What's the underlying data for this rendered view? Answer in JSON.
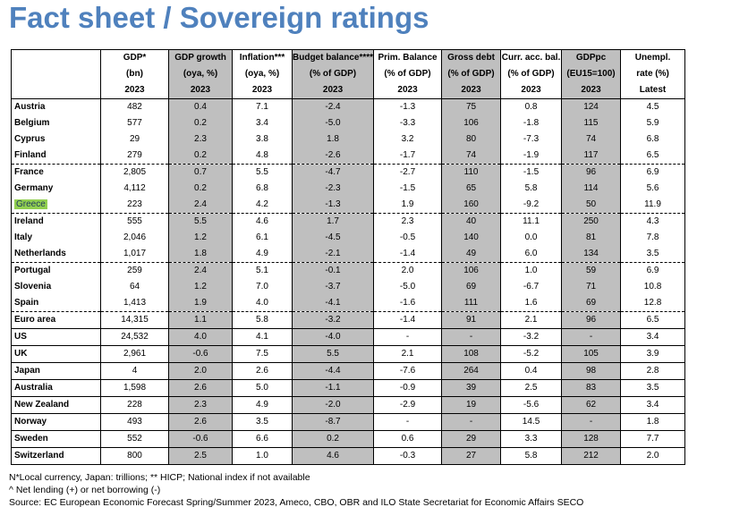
{
  "title": "Fact sheet / Sovereign ratings",
  "columns": [
    {
      "l1": "",
      "l2": "",
      "l3": ""
    },
    {
      "l1": "GDP*",
      "l2": "(bn)",
      "l3": "2023"
    },
    {
      "l1": "GDP growth",
      "l2": "(oya, %)",
      "l3": "2023"
    },
    {
      "l1": "Inflation***",
      "l2": "(oya, %)",
      "l3": "2023"
    },
    {
      "l1": "Budget balance****",
      "l2": "(% of GDP)",
      "l3": "2023"
    },
    {
      "l1": "Prim. Balance",
      "l2": "(% of GDP)",
      "l3": "2023"
    },
    {
      "l1": "Gross debt",
      "l2": "(% of GDP)",
      "l3": "2023"
    },
    {
      "l1": "Curr. acc. bal.",
      "l2": "(% of GDP)",
      "l3": "2023"
    },
    {
      "l1": "GDPpc",
      "l2": "(EU15=100)",
      "l3": "2023"
    },
    {
      "l1": "Unempl.",
      "l2": "rate (%)",
      "l3": "Latest"
    }
  ],
  "rows": [
    {
      "name": "Austria",
      "values": [
        "482",
        "0.4",
        "7.1",
        "-2.4",
        "-1.3",
        "75",
        "0.8",
        "124",
        "4.5"
      ]
    },
    {
      "name": "Belgium",
      "values": [
        "577",
        "0.2",
        "3.4",
        "-5.0",
        "-3.3",
        "106",
        "-1.8",
        "115",
        "5.9"
      ]
    },
    {
      "name": "Cyprus",
      "values": [
        "29",
        "2.3",
        "3.8",
        "1.8",
        "3.2",
        "80",
        "-7.3",
        "74",
        "6.8"
      ]
    },
    {
      "name": "Finland",
      "values": [
        "279",
        "0.2",
        "4.8",
        "-2.6",
        "-1.7",
        "74",
        "-1.9",
        "117",
        "6.5"
      ]
    },
    {
      "name": "France",
      "values": [
        "2,805",
        "0.7",
        "5.5",
        "-4.7",
        "-2.7",
        "110",
        "-1.5",
        "96",
        "6.9"
      ]
    },
    {
      "name": "Germany",
      "values": [
        "4,112",
        "0.2",
        "6.8",
        "-2.3",
        "-1.5",
        "65",
        "5.8",
        "114",
        "5.6"
      ]
    },
    {
      "name": "Greece",
      "values": [
        "223",
        "2.4",
        "4.2",
        "-1.3",
        "1.9",
        "160",
        "-9.2",
        "50",
        "11.9"
      ]
    },
    {
      "name": "Ireland",
      "values": [
        "555",
        "5.5",
        "4.6",
        "1.7",
        "2.3",
        "40",
        "11.1",
        "250",
        "4.3"
      ]
    },
    {
      "name": "Italy",
      "values": [
        "2,046",
        "1.2",
        "6.1",
        "-4.5",
        "-0.5",
        "140",
        "0.0",
        "81",
        "7.8"
      ]
    },
    {
      "name": "Netherlands",
      "values": [
        "1,017",
        "1.8",
        "4.9",
        "-2.1",
        "-1.4",
        "49",
        "6.0",
        "134",
        "3.5"
      ]
    },
    {
      "name": "Portugal",
      "values": [
        "259",
        "2.4",
        "5.1",
        "-0.1",
        "2.0",
        "106",
        "1.0",
        "59",
        "6.9"
      ]
    },
    {
      "name": "Slovenia",
      "values": [
        "64",
        "1.2",
        "7.0",
        "-3.7",
        "-5.0",
        "69",
        "-6.7",
        "71",
        "10.8"
      ]
    },
    {
      "name": "Spain",
      "values": [
        "1,413",
        "1.9",
        "4.0",
        "-4.1",
        "-1.6",
        "111",
        "1.6",
        "69",
        "12.8"
      ]
    },
    {
      "name": "Euro area",
      "values": [
        "14,315",
        "1.1",
        "5.8",
        "-3.2",
        "-1.4",
        "91",
        "2.1",
        "96",
        "6.5"
      ]
    },
    {
      "name": "US",
      "values": [
        "24,532",
        "4.0",
        "4.1",
        "-4.0",
        "-",
        "-",
        "-3.2",
        "-",
        "3.4"
      ]
    },
    {
      "name": "UK",
      "values": [
        "2,961",
        "-0.6",
        "7.5",
        "5.5",
        "2.1",
        "108",
        "-5.2",
        "105",
        "3.9"
      ]
    },
    {
      "name": "Japan",
      "values": [
        "4",
        "2.0",
        "2.6",
        "-4.4",
        "-7.6",
        "264",
        "0.4",
        "98",
        "2.8"
      ]
    },
    {
      "name": "Australia",
      "values": [
        "1,598",
        "2.6",
        "5.0",
        "-1.1",
        "-0.9",
        "39",
        "2.5",
        "83",
        "3.5"
      ]
    },
    {
      "name": "New Zealand",
      "values": [
        "228",
        "2.3",
        "4.9",
        "-2.0",
        "-2.9",
        "19",
        "-5.6",
        "62",
        "3.4"
      ]
    },
    {
      "name": "Norway",
      "values": [
        "493",
        "2.6",
        "3.5",
        "-8.7",
        "-",
        "-",
        "14.5",
        "-",
        "1.8"
      ]
    },
    {
      "name": "Sweden",
      "values": [
        "552",
        "-0.6",
        "6.6",
        "0.2",
        "0.6",
        "29",
        "3.3",
        "128",
        "7.7"
      ]
    },
    {
      "name": "Switzerland",
      "values": [
        "800",
        "2.5",
        "1.0",
        "4.6",
        "-0.3",
        "27",
        "5.8",
        "212",
        "2.0"
      ]
    }
  ],
  "highlight_row": "Greece",
  "highlight_color": "#92d050",
  "shade_color": "#bfbfbf",
  "title_color": "#4f81bd",
  "footnotes": [
    "N*Local currency, Japan: trillions; ** HICP; National index if not available",
    "^ Net lending (+) or net borrowing (-)",
    "Source: EC European Economic Forecast Spring/Summer 2023, Ameco, CBO, OBR and ILO State Secretariat for Economic Affairs SECO"
  ]
}
